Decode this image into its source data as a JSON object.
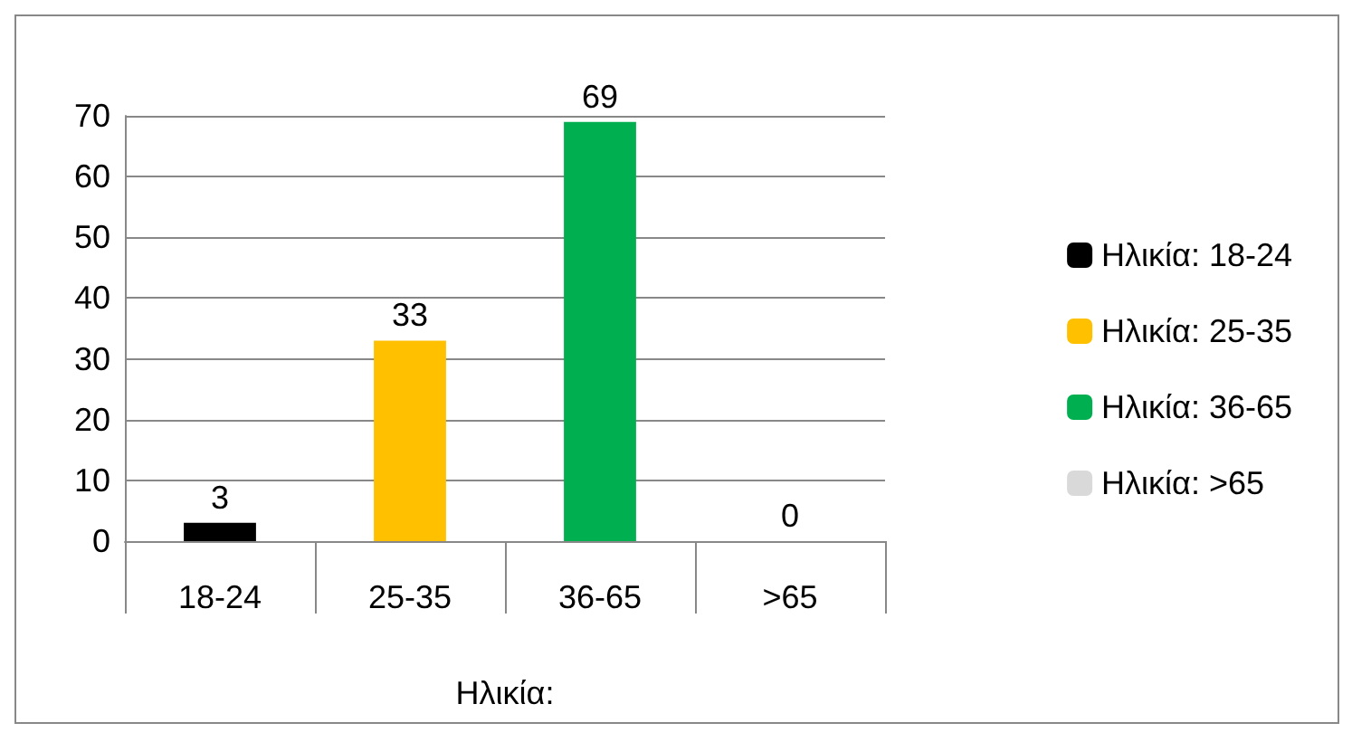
{
  "chart_data": {
    "type": "bar",
    "xlabel": "Ηλικία:",
    "categories": [
      "18-24",
      "25-35",
      "36-65",
      ">65"
    ],
    "series": [
      {
        "name": "Ηλικία: 18-24",
        "color": "#000000",
        "values": [
          3,
          null,
          null,
          null
        ]
      },
      {
        "name": "Ηλικία: 25-35",
        "color": "#ffc000",
        "values": [
          null,
          33,
          null,
          null
        ]
      },
      {
        "name": "Ηλικία: 36-65",
        "color": "#00b050",
        "values": [
          null,
          null,
          69,
          null
        ]
      },
      {
        "name": "Ηλικία: >65",
        "color": "#d9d9d9",
        "values": [
          null,
          null,
          null,
          0
        ]
      }
    ],
    "stacked": true,
    "ylim": [
      0,
      70
    ],
    "yticks": [
      0,
      10,
      20,
      30,
      40,
      50,
      60,
      70
    ],
    "grid": "y",
    "legend": "right",
    "data_labels": true
  }
}
